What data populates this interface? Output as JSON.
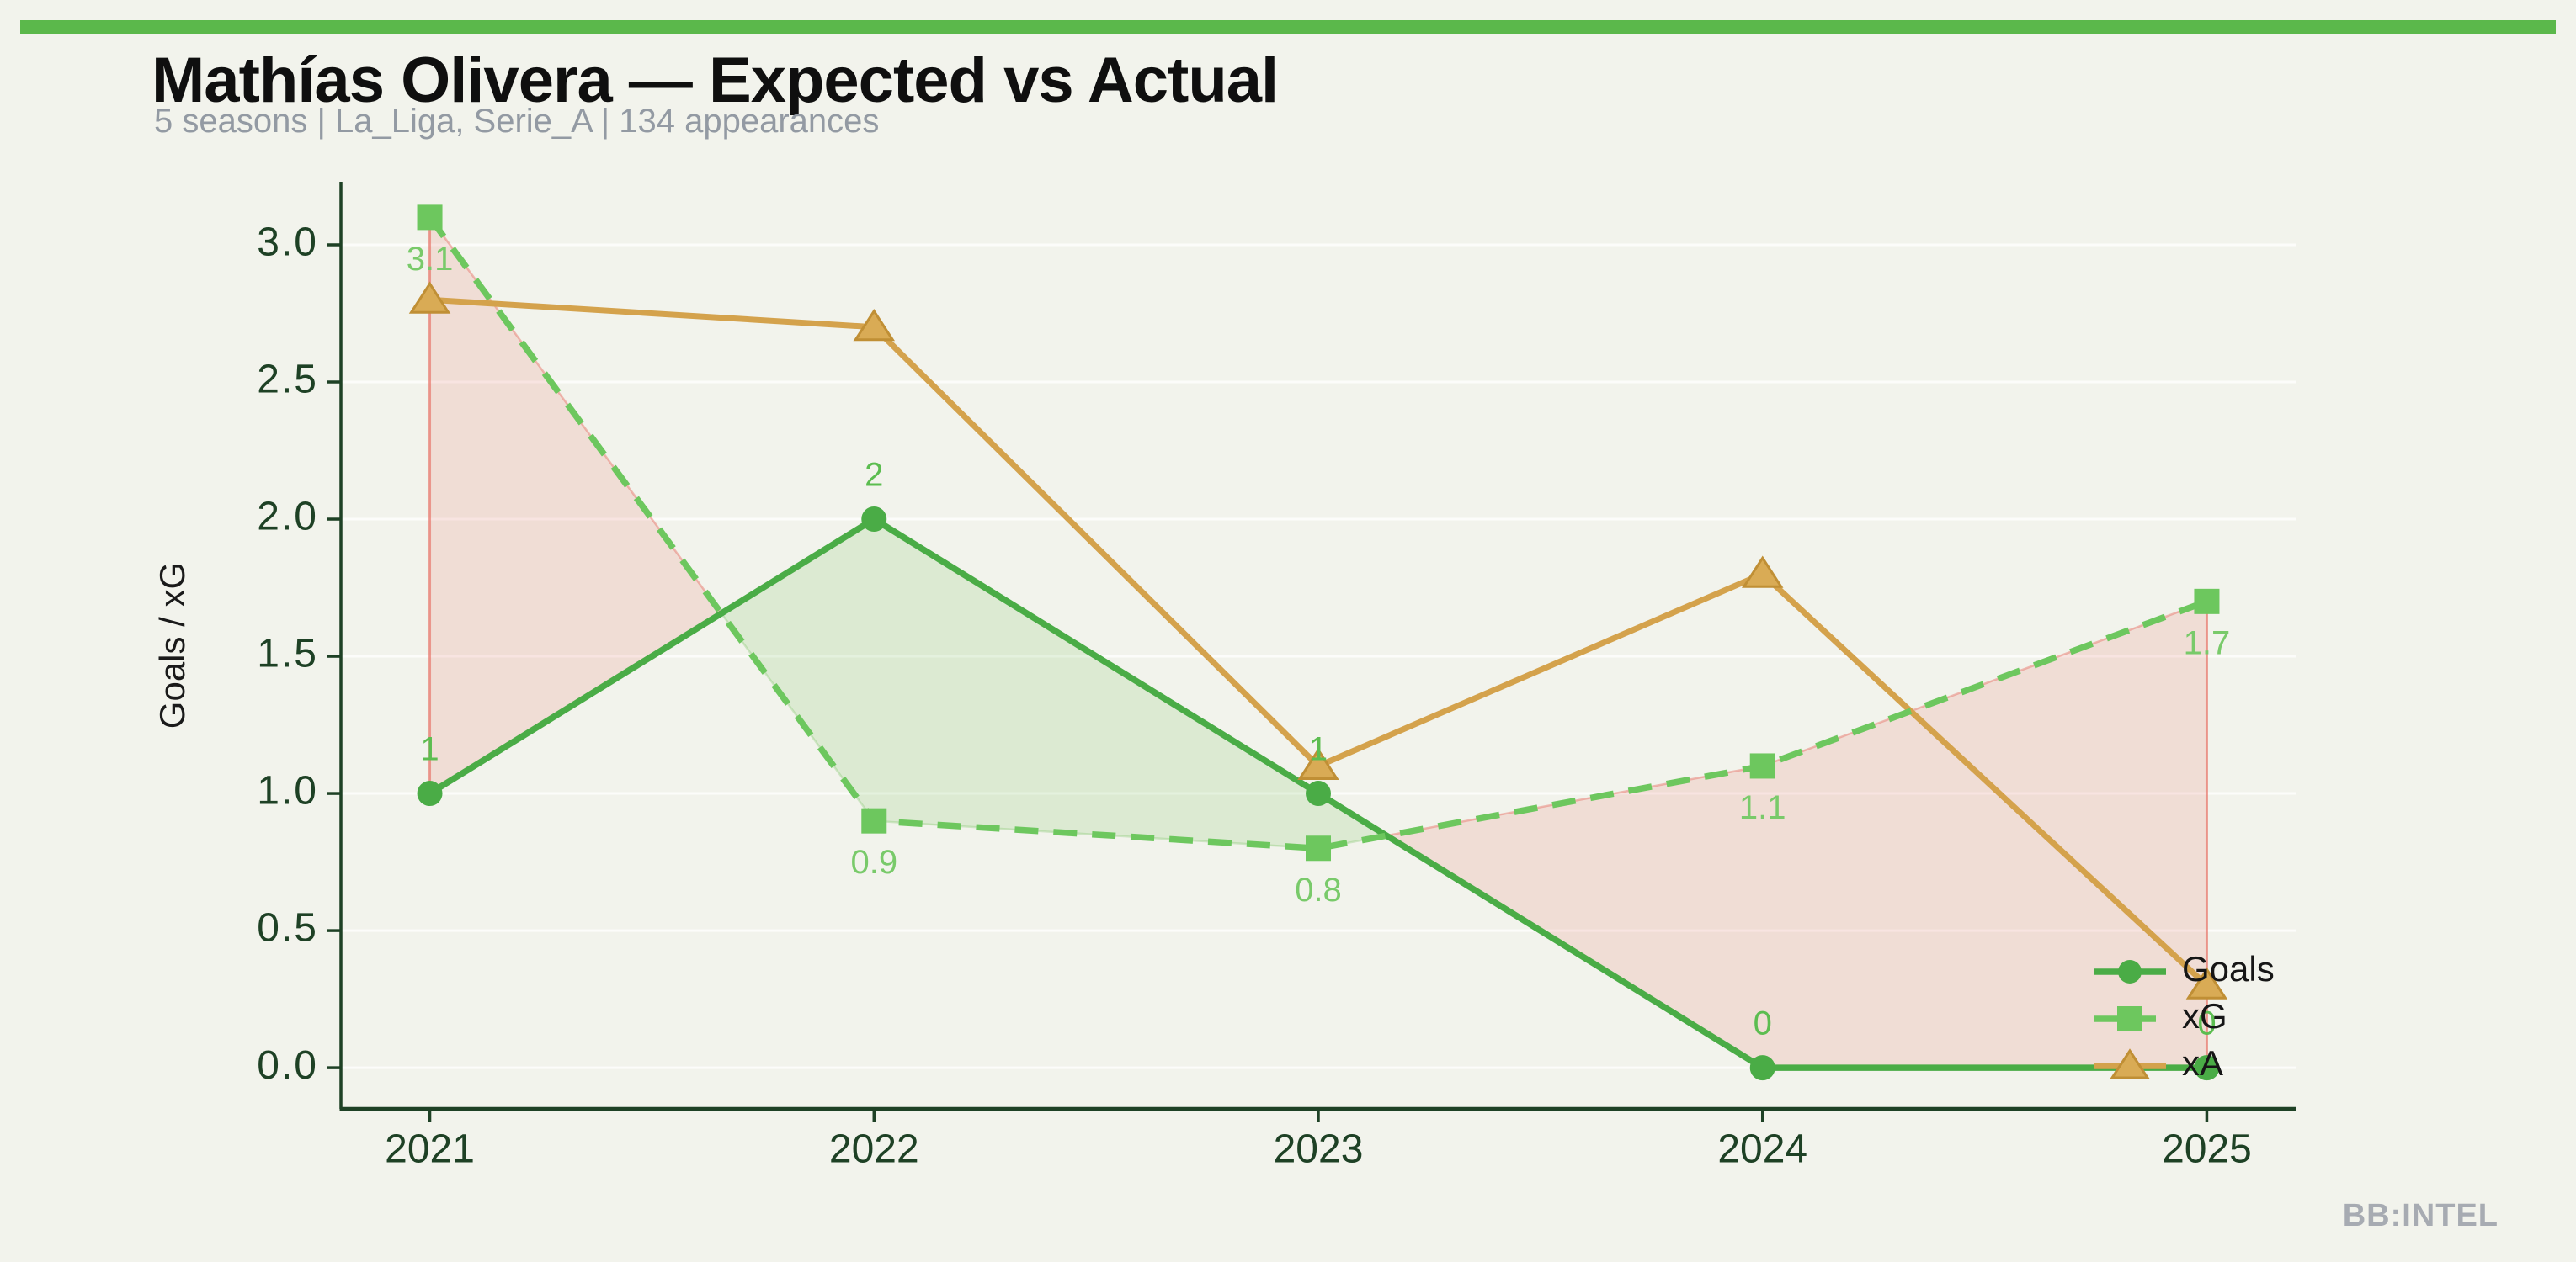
{
  "page": {
    "background": "#f2f3ec",
    "accent_bar_color": "#5bb84b",
    "watermark": "BB:INTEL"
  },
  "chart_data": {
    "type": "line",
    "title": "Mathías Olivera — Expected vs Actual",
    "subtitle": "5 seasons | La_Liga, Serie_A | 134 appearances",
    "x": [
      2021,
      2022,
      2023,
      2024,
      2025
    ],
    "xtick_labels": [
      "2021",
      "2022",
      "2023",
      "2024",
      "2025"
    ],
    "yticks": [
      0.0,
      0.5,
      1.0,
      1.5,
      2.0,
      2.5,
      3.0
    ],
    "ytick_labels": [
      "0.0",
      "0.5",
      "1.0",
      "1.5",
      "2.0",
      "2.5",
      "3.0"
    ],
    "xlabel": "",
    "ylabel": "Goals / xG",
    "xlim": [
      2020.8,
      2025.2
    ],
    "ylim": [
      -0.15,
      3.23
    ],
    "grid": true,
    "series": [
      {
        "name": "Goals",
        "values": [
          1,
          2,
          1,
          0,
          0
        ],
        "labels": [
          "1",
          "2",
          "1",
          "0",
          "0"
        ],
        "label_side": "above",
        "color": "#4aac46",
        "label_color": "#5cbd50",
        "marker": "circle",
        "line_style": "solid"
      },
      {
        "name": "xG",
        "values": [
          3.1,
          0.9,
          0.8,
          1.1,
          1.7
        ],
        "labels": [
          "3.1",
          "0.9",
          "0.8",
          "1.1",
          "1.7"
        ],
        "label_side": "below",
        "color": "#6dc75e",
        "label_color": "#79ca6a",
        "marker": "square",
        "line_style": "dashed"
      },
      {
        "name": "xA",
        "values": [
          2.8,
          2.7,
          1.1,
          1.8,
          0.3
        ],
        "labels": [
          "",
          "",
          "",
          "",
          ""
        ],
        "label_side": "above",
        "color": "#d4a24c",
        "marker_face": "#d9ab55",
        "marker_edge": "#c08f35",
        "marker": "triangle",
        "line_style": "solid"
      }
    ],
    "fills": {
      "between": [
        "xG",
        "Goals"
      ],
      "xg_above_goals_color": "rgba(230,110,100,0.17)",
      "xg_above_goals_edge": "rgba(230,110,100,0.45)",
      "goals_above_xg_color": "rgba(120,195,95,0.18)",
      "goals_above_xg_edge": "rgba(120,195,95,0.30)"
    },
    "legend": {
      "position": "lower right",
      "entries": [
        "Goals",
        "xG",
        "xA"
      ],
      "text_color": "#161616"
    },
    "axis_color": "#1e4125",
    "grid_color": "rgba(255,255,255,0.75)",
    "ylabel_color": "#1a1a1a"
  }
}
